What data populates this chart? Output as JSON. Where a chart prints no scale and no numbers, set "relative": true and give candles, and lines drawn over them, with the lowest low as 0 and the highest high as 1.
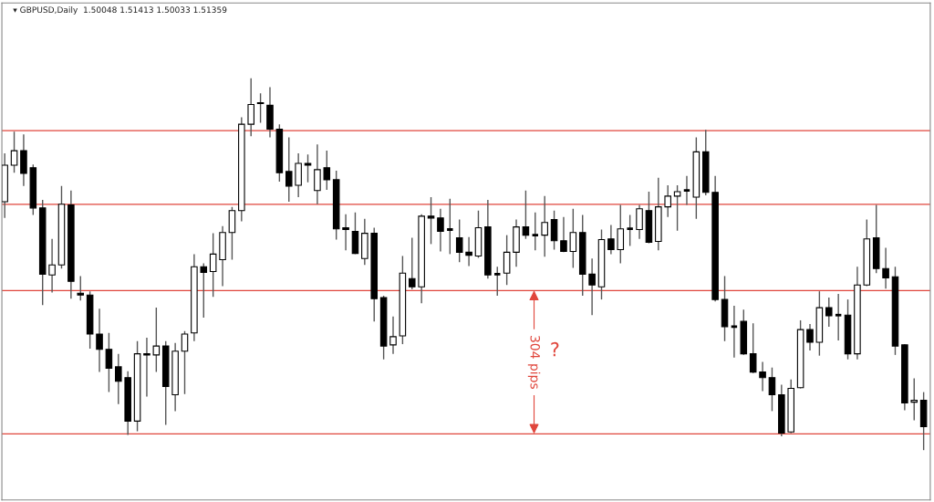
{
  "chart_data": {
    "type": "candlestick",
    "relative": true,
    "grid": false,
    "categories": [
      null,
      null,
      null,
      null,
      null,
      null,
      null,
      null,
      null,
      null,
      null,
      null,
      null,
      null,
      null,
      null,
      null,
      null,
      null,
      null,
      null,
      null,
      null,
      null,
      null,
      null,
      null,
      null,
      null,
      null,
      null,
      null,
      null,
      null,
      null,
      null,
      null,
      null,
      null,
      null,
      null,
      null,
      null,
      null,
      null,
      null,
      null,
      null,
      null,
      null,
      null,
      null,
      null,
      null,
      null,
      null,
      null,
      null,
      null,
      null,
      null,
      null,
      null,
      null,
      null,
      null,
      null,
      null,
      null,
      null,
      null,
      null,
      null,
      null,
      null,
      null,
      null,
      null,
      null,
      null,
      null,
      null,
      null,
      null,
      null,
      null,
      null,
      null,
      null,
      null,
      null,
      null,
      null,
      null,
      null,
      null,
      null,
      null
    ],
    "ohlc": [
      [
        0.668,
        0.798,
        0.624,
        0.766
      ],
      [
        0.766,
        0.856,
        0.746,
        0.805
      ],
      [
        0.805,
        0.849,
        0.71,
        0.744
      ],
      [
        0.759,
        0.768,
        0.632,
        0.651
      ],
      [
        0.651,
        0.673,
        0.39,
        0.473
      ],
      [
        0.471,
        0.568,
        0.424,
        0.498
      ],
      [
        0.498,
        0.71,
        0.488,
        0.661
      ],
      [
        0.659,
        0.698,
        0.407,
        0.454
      ],
      [
        0.422,
        0.468,
        0.402,
        0.417
      ],
      [
        0.417,
        0.427,
        0.273,
        0.312
      ],
      [
        0.312,
        0.38,
        0.21,
        0.271
      ],
      [
        0.271,
        0.315,
        0.156,
        0.22
      ],
      [
        0.224,
        0.259,
        0.124,
        0.185
      ],
      [
        0.195,
        0.212,
        0.041,
        0.078
      ],
      [
        0.078,
        0.293,
        0.051,
        0.259
      ],
      [
        0.259,
        0.302,
        0.144,
        0.256
      ],
      [
        0.256,
        0.383,
        0.21,
        0.28
      ],
      [
        0.28,
        0.293,
        0.068,
        0.171
      ],
      [
        0.149,
        0.288,
        0.105,
        0.266
      ],
      [
        0.266,
        0.32,
        0.151,
        0.312
      ],
      [
        0.315,
        0.527,
        0.293,
        0.493
      ],
      [
        0.493,
        0.502,
        0.356,
        0.478
      ],
      [
        0.48,
        0.583,
        0.412,
        0.527
      ],
      [
        0.512,
        0.602,
        0.441,
        0.585
      ],
      [
        0.585,
        0.654,
        0.512,
        0.644
      ],
      [
        0.644,
        0.895,
        0.615,
        0.876
      ],
      [
        0.876,
        1,
        0.844,
        0.929
      ],
      [
        0.932,
        0.959,
        0.88,
        0.934
      ],
      [
        0.927,
        0.976,
        0.841,
        0.863
      ],
      [
        0.863,
        0.876,
        0.722,
        0.746
      ],
      [
        0.749,
        0.841,
        0.668,
        0.71
      ],
      [
        0.712,
        0.798,
        0.68,
        0.771
      ],
      [
        0.771,
        0.795,
        0.72,
        0.766
      ],
      [
        0.698,
        0.822,
        0.661,
        0.754
      ],
      [
        0.759,
        0.805,
        0.7,
        0.727
      ],
      [
        0.727,
        0.751,
        0.566,
        0.595
      ],
      [
        0.598,
        0.634,
        0.537,
        0.593
      ],
      [
        0.588,
        0.639,
        0.527,
        0.529
      ],
      [
        0.515,
        0.622,
        0.498,
        0.583
      ],
      [
        0.583,
        0.598,
        0.346,
        0.407
      ],
      [
        0.41,
        0.415,
        0.244,
        0.28
      ],
      [
        0.283,
        0.359,
        0.259,
        0.305
      ],
      [
        0.307,
        0.522,
        0.285,
        0.476
      ],
      [
        0.461,
        0.571,
        0.432,
        0.439
      ],
      [
        0.439,
        0.634,
        0.395,
        0.629
      ],
      [
        0.629,
        0.68,
        0.554,
        0.624
      ],
      [
        0.624,
        0.649,
        0.534,
        0.588
      ],
      [
        0.593,
        0.676,
        0.527,
        0.593
      ],
      [
        0.571,
        0.62,
        0.505,
        0.532
      ],
      [
        0.532,
        0.573,
        0.495,
        0.524
      ],
      [
        0.522,
        0.644,
        0.517,
        0.598
      ],
      [
        0.6,
        0.673,
        0.461,
        0.471
      ],
      [
        0.473,
        0.493,
        0.415,
        0.473
      ],
      [
        0.476,
        0.578,
        0.444,
        0.532
      ],
      [
        0.532,
        0.62,
        0.493,
        0.6
      ],
      [
        0.6,
        0.698,
        0.568,
        0.578
      ],
      [
        0.578,
        0.639,
        0.537,
        0.578
      ],
      [
        0.578,
        0.683,
        0.52,
        0.612
      ],
      [
        0.62,
        0.644,
        0.539,
        0.563
      ],
      [
        0.563,
        0.627,
        0.532,
        0.534
      ],
      [
        0.534,
        0.649,
        0.49,
        0.585
      ],
      [
        0.585,
        0.632,
        0.415,
        0.473
      ],
      [
        0.473,
        0.515,
        0.363,
        0.444
      ],
      [
        0.439,
        0.593,
        0.405,
        0.566
      ],
      [
        0.568,
        0.605,
        0.527,
        0.539
      ],
      [
        0.539,
        0.659,
        0.502,
        0.595
      ],
      [
        0.595,
        0.632,
        0.549,
        0.595
      ],
      [
        0.593,
        0.659,
        0.568,
        0.649
      ],
      [
        0.644,
        0.695,
        0.556,
        0.559
      ],
      [
        0.561,
        0.732,
        0.537,
        0.654
      ],
      [
        0.654,
        0.712,
        0.627,
        0.683
      ],
      [
        0.683,
        0.712,
        0.59,
        0.695
      ],
      [
        0.698,
        0.737,
        0.659,
        0.698
      ],
      [
        0.68,
        0.841,
        0.622,
        0.802
      ],
      [
        0.802,
        0.861,
        0.685,
        0.693
      ],
      [
        0.693,
        0.737,
        0.4,
        0.405
      ],
      [
        0.405,
        0.468,
        0.293,
        0.332
      ],
      [
        0.332,
        0.388,
        0.249,
        0.332
      ],
      [
        0.346,
        0.378,
        0.256,
        0.259
      ],
      [
        0.259,
        0.341,
        0.207,
        0.21
      ],
      [
        0.21,
        0.237,
        0.159,
        0.195
      ],
      [
        0.195,
        0.222,
        0.105,
        0.149
      ],
      [
        0.149,
        0.176,
        0.037,
        0.046
      ],
      [
        0.049,
        0.19,
        0.046,
        0.166
      ],
      [
        0.168,
        0.349,
        0.166,
        0.324
      ],
      [
        0.324,
        0.339,
        0.268,
        0.29
      ],
      [
        0.29,
        0.427,
        0.254,
        0.383
      ],
      [
        0.383,
        0.41,
        0.332,
        0.361
      ],
      [
        0.363,
        0.42,
        0.295,
        0.363
      ],
      [
        0.363,
        0.405,
        0.244,
        0.259
      ],
      [
        0.259,
        0.493,
        0.244,
        0.444
      ],
      [
        0.444,
        0.62,
        0.441,
        0.568
      ],
      [
        0.571,
        0.659,
        0.476,
        0.488
      ],
      [
        0.488,
        0.544,
        0.434,
        0.463
      ],
      [
        0.466,
        0.493,
        0.256,
        0.28
      ],
      [
        0.283,
        0.285,
        0.107,
        0.127
      ],
      [
        0.129,
        0.193,
        0.08,
        0.134
      ],
      [
        0.134,
        0.156,
        0,
        0.063
      ]
    ],
    "ref_lines": [
      {
        "axis": "y",
        "value": 0.859,
        "color": "#e0463c"
      },
      {
        "axis": "y",
        "value": 0.661,
        "color": "#e0463c"
      },
      {
        "axis": "y",
        "value": 0.429,
        "color": "#e0463c"
      },
      {
        "axis": "y",
        "value": 0.044,
        "color": "#e0463c"
      }
    ],
    "annotations": [
      "▾ GBPUSD,Daily  1.50048 1.51413 1.50033 1.51359",
      "304 pips",
      "?"
    ]
  }
}
